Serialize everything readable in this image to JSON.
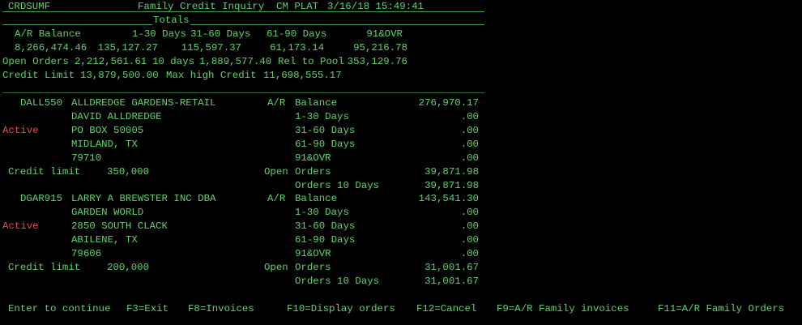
{
  "header": {
    "program": "CRDSUMF",
    "title": "Family Credit Inquiry  CM PLAT",
    "datetime": "3/16/18 15:49:41"
  },
  "totals": {
    "section_label": "Totals",
    "columns": [
      "A/R Balance",
      "1-30 Days",
      "31-60 Days",
      "61-90 Days",
      "91&OVR"
    ],
    "values": [
      "8,266,474.46",
      "135,127.27",
      "115,597.37",
      "61,173.14",
      "95,216.78"
    ],
    "open_orders_label": "Open Orders",
    "open_orders": "2,212,561.61",
    "ten_days_label": "10 days",
    "ten_days": "1,889,577.40",
    "rel_pool_label": "Rel to Pool",
    "rel_pool": "353,129.76",
    "credit_limit_label": "Credit Limit",
    "credit_limit": "13,879,500.00",
    "max_high_label": "Max high Credit",
    "max_high": "11,698,555.17"
  },
  "labels": {
    "ar_prefix": "A/R",
    "balance": "Balance",
    "d1_30": "1-30 Days",
    "d31_60": "31-60 Days",
    "d61_90": "61-90 Days",
    "d91": "91&OVR",
    "open_prefix": "Open",
    "orders": "Orders",
    "orders10": "Orders 10 Days",
    "credit_limit": "Credit limit"
  },
  "customers": [
    {
      "code": "DALL550",
      "name": "ALLDREDGE GARDENS-RETAIL",
      "line2": "DAVID ALLDREDGE",
      "status": "Active",
      "address": "PO BOX 50005",
      "city": "MIDLAND, TX",
      "zip": "79710",
      "credit_limit": "350,000",
      "ar_balance": "276,970.17",
      "d1_30": ".00",
      "d31_60": ".00",
      "d61_90": ".00",
      "d91": ".00",
      "open_orders": "39,871.98",
      "orders10": "39,871.98"
    },
    {
      "code": "DGAR915",
      "name": "LARRY A BREWSTER INC DBA",
      "line2": "GARDEN WORLD",
      "status": "Active",
      "address": "2850 SOUTH CLACK",
      "city": "ABILENE, TX",
      "zip": "79606",
      "credit_limit": "200,000",
      "ar_balance": "143,541.30",
      "d1_30": ".00",
      "d31_60": ".00",
      "d61_90": ".00",
      "d91": ".00",
      "open_orders": "31,001.67",
      "orders10": "31,001.67"
    }
  ],
  "footer": {
    "keys": [
      "Enter to continue",
      "F3=Exit",
      "F8=Invoices",
      "F10=Display orders",
      "F12=Cancel",
      "F9=A/R Family invoices",
      "F11=A/R Family Orders"
    ]
  },
  "colors": {
    "text": "#5cd46e",
    "status": "#e84a4a",
    "background": "#000000"
  }
}
